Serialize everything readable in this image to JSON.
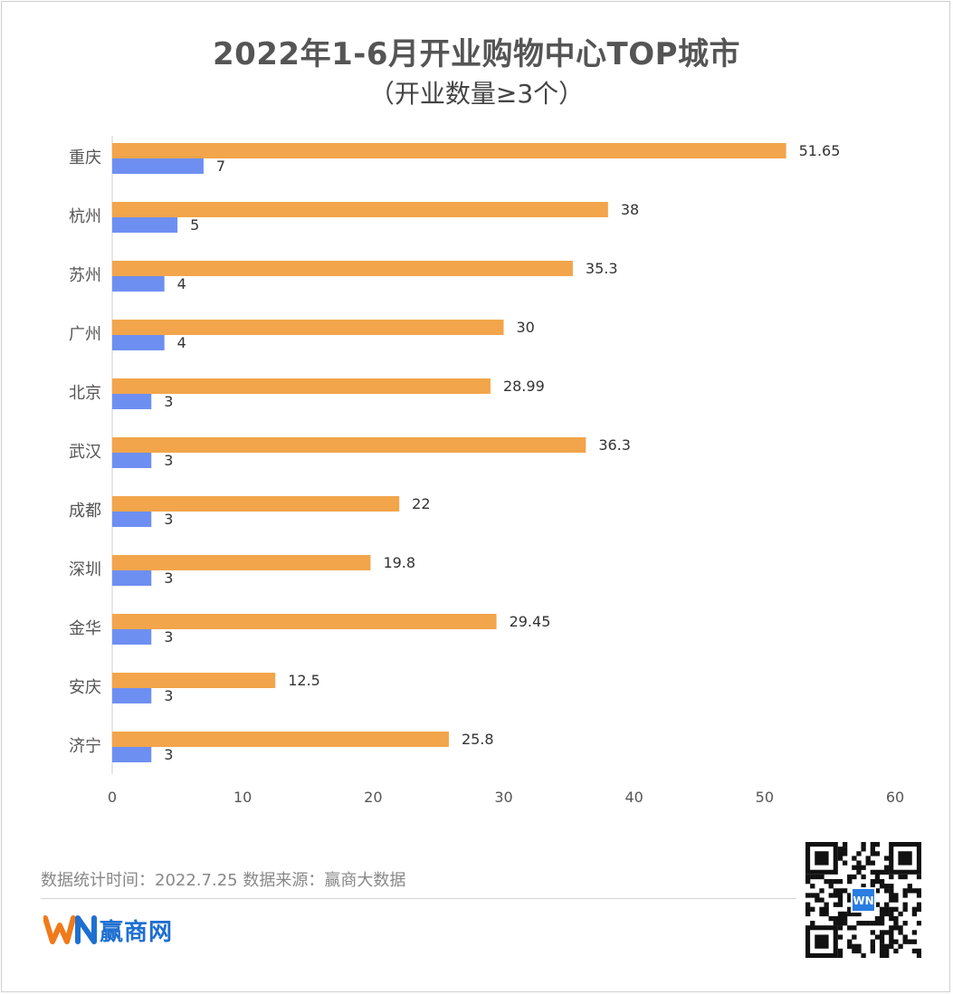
{
  "header": {
    "title": "2022年1-6月开业购物中心TOP城市",
    "subtitle": "（开业数量≥3个）"
  },
  "footer": {
    "note": "数据统计时间：2022.7.25  数据来源：赢商大数据",
    "brand_name": "赢商网",
    "logo_icon": "winshang-logo-icon",
    "qr_icon": "qr-code-icon"
  },
  "colors": {
    "orange": "#f2a54a",
    "blue": "#6e8ff2"
  },
  "chart_data": {
    "type": "bar",
    "orientation": "horizontal",
    "categories": [
      "重庆",
      "杭州",
      "苏州",
      "广州",
      "北京",
      "武汉",
      "成都",
      "深圳",
      "金华",
      "安庆",
      "济宁"
    ],
    "series": [
      {
        "values": [
          51.65,
          38,
          35.3,
          30,
          28.99,
          36.3,
          22,
          19.8,
          29.45,
          12.5,
          25.8
        ],
        "color": "#f2a54a"
      },
      {
        "values": [
          7,
          5,
          4,
          4,
          3,
          3,
          3,
          3,
          3,
          3,
          3
        ],
        "color": "#6e8ff2"
      }
    ],
    "xlim": [
      0,
      60
    ],
    "xticks": [
      0,
      10,
      20,
      30,
      40,
      50,
      60
    ],
    "grid": false,
    "legend": "none"
  }
}
